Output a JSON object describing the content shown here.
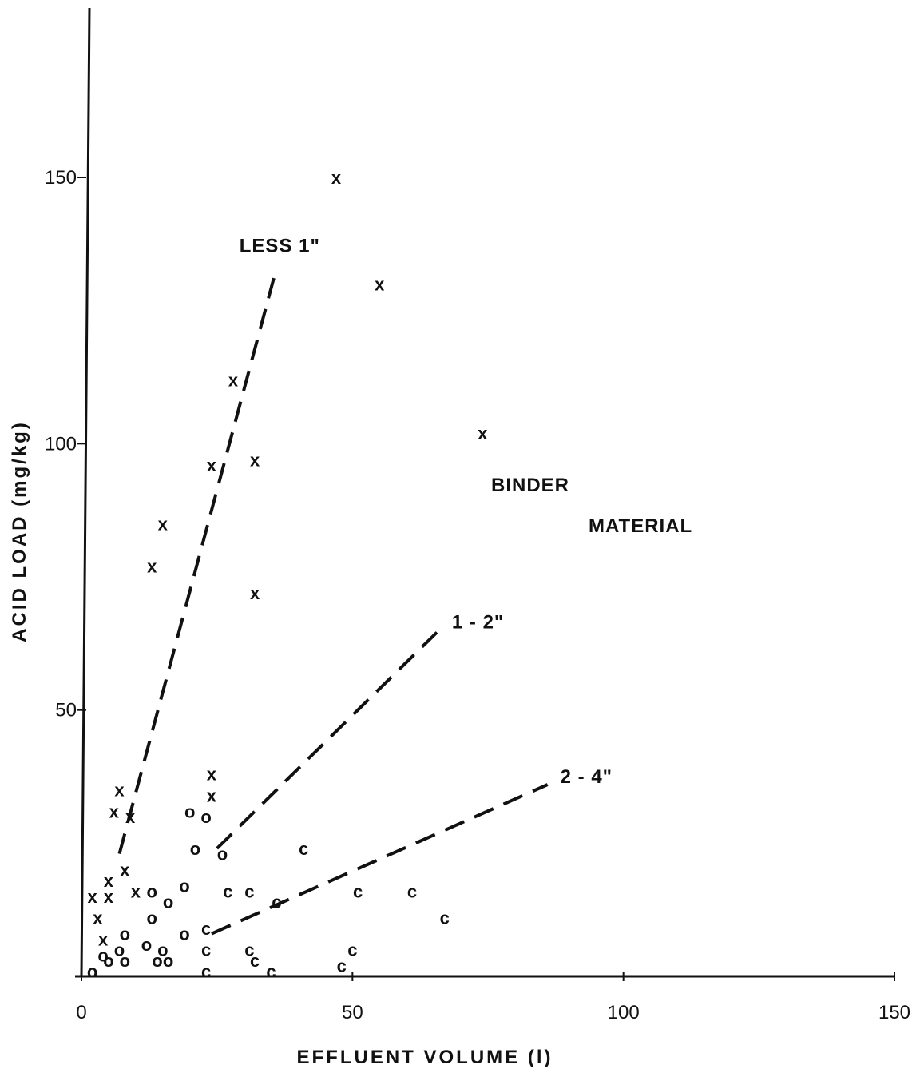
{
  "chart_data": {
    "type": "scatter",
    "xlabel": "EFFLUENT VOLUME (l)",
    "ylabel": "ACID LOAD (mg/kg)",
    "xlim": [
      0,
      150
    ],
    "ylim": [
      0,
      180
    ],
    "x_ticks": [
      "0",
      "50",
      "100",
      "150"
    ],
    "y_ticks": [
      "50",
      "100",
      "150"
    ],
    "grid": false,
    "series": [
      {
        "marker": "X",
        "points": [
          {
            "x": 47,
            "y": 150
          },
          {
            "x": 55,
            "y": 130
          },
          {
            "x": 28,
            "y": 112
          },
          {
            "x": 74,
            "y": 102
          },
          {
            "x": 24,
            "y": 96
          },
          {
            "x": 32,
            "y": 97
          },
          {
            "x": 15,
            "y": 85
          },
          {
            "x": 13,
            "y": 77
          },
          {
            "x": 32,
            "y": 72
          },
          {
            "x": 24,
            "y": 38
          },
          {
            "x": 24,
            "y": 34
          },
          {
            "x": 7,
            "y": 35
          },
          {
            "x": 6,
            "y": 31
          },
          {
            "x": 9,
            "y": 30
          },
          {
            "x": 8,
            "y": 20
          },
          {
            "x": 5,
            "y": 18
          },
          {
            "x": 2,
            "y": 15
          },
          {
            "x": 5,
            "y": 15
          },
          {
            "x": 10,
            "y": 16
          },
          {
            "x": 3,
            "y": 11
          },
          {
            "x": 4,
            "y": 7
          }
        ]
      },
      {
        "marker": "O",
        "points": [
          {
            "x": 20,
            "y": 31
          },
          {
            "x": 23,
            "y": 30
          },
          {
            "x": 21,
            "y": 24
          },
          {
            "x": 26,
            "y": 23
          },
          {
            "x": 19,
            "y": 17
          },
          {
            "x": 13,
            "y": 16
          },
          {
            "x": 16,
            "y": 14
          },
          {
            "x": 13,
            "y": 11
          },
          {
            "x": 8,
            "y": 8
          },
          {
            "x": 19,
            "y": 8
          },
          {
            "x": 12,
            "y": 6
          },
          {
            "x": 15,
            "y": 5
          },
          {
            "x": 7,
            "y": 5
          },
          {
            "x": 4,
            "y": 4
          },
          {
            "x": 5,
            "y": 3
          },
          {
            "x": 8,
            "y": 3
          },
          {
            "x": 14,
            "y": 3
          },
          {
            "x": 16,
            "y": 3
          },
          {
            "x": 2,
            "y": 1
          }
        ]
      },
      {
        "marker": "C",
        "points": [
          {
            "x": 41,
            "y": 24
          },
          {
            "x": 27,
            "y": 16
          },
          {
            "x": 31,
            "y": 16
          },
          {
            "x": 51,
            "y": 16
          },
          {
            "x": 61,
            "y": 16
          },
          {
            "x": 36,
            "y": 14
          },
          {
            "x": 67,
            "y": 11
          },
          {
            "x": 23,
            "y": 9
          },
          {
            "x": 23,
            "y": 5
          },
          {
            "x": 31,
            "y": 5
          },
          {
            "x": 32,
            "y": 3
          },
          {
            "x": 50,
            "y": 5
          },
          {
            "x": 48,
            "y": 2
          },
          {
            "x": 35,
            "y": 1
          },
          {
            "x": 23,
            "y": 1
          }
        ]
      }
    ],
    "trend_lines": [
      {
        "label": "LESS 1\"",
        "points": [
          {
            "x": 7,
            "y": 23
          },
          {
            "x": 36,
            "y": 133
          }
        ]
      },
      {
        "label": "1 - 2\"",
        "points": [
          {
            "x": 25,
            "y": 24
          },
          {
            "x": 66,
            "y": 65
          }
        ]
      },
      {
        "label": "2 - 4\"",
        "points": [
          {
            "x": 24,
            "y": 8
          },
          {
            "x": 86,
            "y": 36
          }
        ]
      }
    ],
    "annotations": [
      "BINDER",
      "MATERIAL"
    ]
  }
}
